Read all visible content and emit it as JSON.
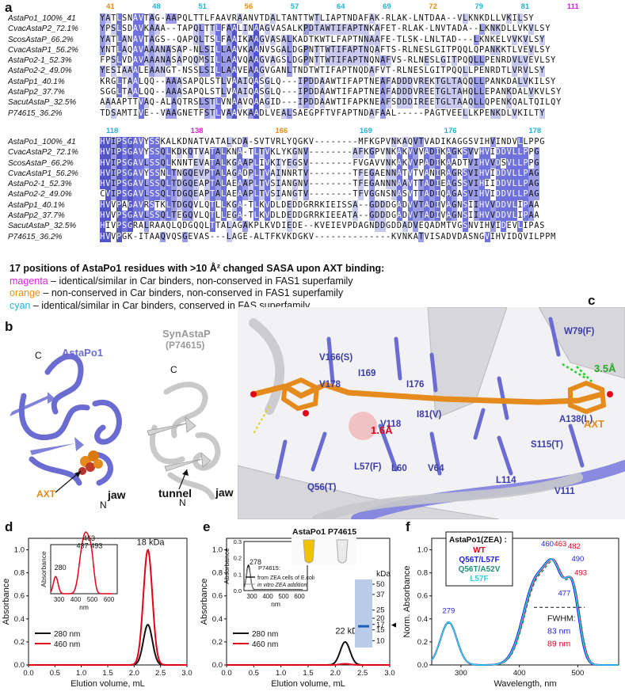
{
  "panels": {
    "a": "a",
    "b": "b",
    "c": "c",
    "d": "d",
    "e": "e",
    "f": "f"
  },
  "alignment": {
    "block1": {
      "positions": [
        {
          "n": "41",
          "c": "orange"
        },
        {
          "n": "48",
          "c": "cyan"
        },
        {
          "n": "51",
          "c": "cyan"
        },
        {
          "n": "56",
          "c": "orange"
        },
        {
          "n": "57",
          "c": "cyan"
        },
        {
          "n": "64",
          "c": "cyan"
        },
        {
          "n": "69",
          "c": "cyan"
        },
        {
          "n": "72",
          "c": "orange"
        },
        {
          "n": "79",
          "c": "cyan"
        },
        {
          "n": "81",
          "c": "cyan"
        },
        {
          "n": "111",
          "c": "magenta"
        }
      ],
      "rows": [
        {
          "name": "AstaPo1_100%_41",
          "seq": "YATLSNAVTAG-AAPQLTTLFAAVRAANVTDALTANTTWTLIAPTNDAFAK-RLAK-LNTDAA--VLKNKDLLVKILSY"
        },
        {
          "name": "CvacAstaP2_72.1%",
          "seq": "YPSLSDAVKAAA--TAPQLTTLFAALINAAGVASALKPDTAWTIFAPTNKAFET-RLAK-LNVTADA--LKNKDLLVKVLSY"
        },
        {
          "name": "ScosAstaP_66.2%",
          "seq": "YATLANAVTAGS--QAPQLTSLFAAIKAAGVASALKADTKWTLFAPTNNAAFE-TLSK-LNLTAD---LKNKELVVKVLSY"
        },
        {
          "name": "CvacAstaP1_56.2%",
          "seq": "YNTLAQAVAAANASAP-NLSILLAAVKAANVSGALDGPNTTWTIFAPTNQAFTS-RLNESLGITPQQLQPANKKTLVEVLSY"
        },
        {
          "name": "AstaPo2-1_52.3%",
          "seq": "FPSLVDAVAAANASAPQQMSILLAAVQAAGVAGSLDGPNTTWTIFAPTNQNAFVS-RLNESLGITPQQLLPENRDVLVEVLSY"
        },
        {
          "name": "AstaPo2-2_49.0%",
          "seq": "YESIAAALEAANGT-NSSLSILLAAVEAAGVGANLTNDTWTIFAPTNQDAFVT-RLNESLGITPQQLLPENRDTLVRVLSY"
        },
        {
          "name": "AstaPp1_40.1%",
          "seq": "KRGLTAALQQ--AAASAPQLSTLVAAIQASGLQ---IPDDAAWTIFAPTNEAFADDDVREKTGLTAQQLLPANKDALVKILSY"
        },
        {
          "name": "AstaPp2_37.7%",
          "seq": "SGGLTAALQQ--AAASAPQLSTLVAAIQASGLQ---IPDDAAWTIFAPTNEAFADDDVREETGLTAHQLLEPANKDALVKVLSY"
        },
        {
          "name": "SacutAstaP_32.5%",
          "seq": "AAAAPTTVAQ-ALAQTRSLSTLVNAAVQAAGID---IPDDAAWTIFAPKNEAFSDDDIREETGLTAAQLLQPENKQALTQILQY"
        },
        {
          "name": "P74615_36.2%",
          "seq": "TDSAMTIVE--VAAGNETFSTLVAAVKAADLVEALSAEGPFTVFAPTNDAFAAL-----PAGTVEELLKPENKDLVKILTY"
        }
      ]
    },
    "block2": {
      "positions": [
        {
          "n": "118",
          "c": "cyan"
        },
        {
          "n": "138",
          "c": "magenta"
        },
        {
          "n": "166",
          "c": "orange"
        },
        {
          "n": "169",
          "c": "cyan"
        },
        {
          "n": "176",
          "c": "cyan"
        },
        {
          "n": "178",
          "c": "cyan"
        }
      ],
      "rows": [
        {
          "name": "AstaPo1_100%_41",
          "seq": "HVIPSGAVYSSKALKDNATVATALKDA-SVTVRLYQGKV--------MFKGPVNKAQVTVADIKAGGSVIHVINDVLLPPG"
        },
        {
          "name": "CvacAstaP2_72.1%",
          "seq": "HVIPSGAVYSSQLKDKQTVATALKNA-TLTVKLYKGNV--------AFKGPVNKAKVVVADIKAGKSVVHVIDDVLLPPG"
        },
        {
          "name": "ScosAstaP_66.2%",
          "seq": "HVIPSGAVLSSQLKNNTEVATALKGAAPLIVKIYEGSV--------FVGAVVNKAKVVPADIKAADTVIHVVDSVLLPPG"
        },
        {
          "name": "CvacAstaP1_56.2%",
          "seq": "HVIPSGAVYSSNLTNGQEVPTALAGADPLTVAINNRTV--------TFEGAENNATVTVANIRAGRSVIHVIDDVLLPAG"
        },
        {
          "name": "AstaPo2-1_52.3%",
          "seq": "HVIPSGAVLSSQLTDGQEAPTALAEAAPLTVSIANGNV--------TFEGANNNAAVTTADIEAGSSVIHIIDDVLLPAG"
        },
        {
          "name": "AstaPo2-2_49.0%",
          "seq": "CVIPSGAVLSSQLTDGQEAPTALAEAAPLTVSIANGTV--------TFVGGNSNASVTTADIQAGASVIHVIDDVLLPAG"
        },
        {
          "name": "AstaPp1_40.1%",
          "seq": "HVVPAGAVRSTKLTDGQVLQTLLKGA-TLKVDLDEDDGRRKIEISSA--GDDDGADVVTADIVAGNSIIHVVDDVLIPAA"
        },
        {
          "name": "AstaPp2_37.7%",
          "seq": "HVVPSGAVLSSQLTEGQVLQTLLEGA-TLKVDLDEDDGRRKIEEATA--GDDDGADVVTADIVAGNSIIHVVDDVLIPAA"
        },
        {
          "name": "SacutAstaP_32.5%",
          "seq": "HIVPSGRALRAAQLQDGQQLTTALAGAKPLKVDIEDE--KVEIEVPDAGNDDGDDADVEQADMTVGSNVIHVIDEVLIPAS"
        },
        {
          "name": "P74615_36.2%",
          "seq": "HVVPGK-ITAAQVQSGEVAS---LAGE-ALTFKVKDGKV--------------KVNKATVISADVDASNGVIHVIDQVILPPM"
        }
      ]
    }
  },
  "legend": {
    "title": "17 positions of AstaPo1 residues with >10 Å² changed SASA upon AXT binding:",
    "items": [
      {
        "key": "magenta",
        "text": " – identical/similar in Car binders, non-conserved in FAS1 superfamily"
      },
      {
        "key": "orange",
        "text": " – non-conserved in Car binders, non-conserved in FAS1 superfamily"
      },
      {
        "key": "cyan",
        "text": " – identical/similar in Car binders, conserved in FAS superfamily"
      }
    ]
  },
  "panel_b": {
    "left_title": "AstaPo1",
    "right_title": "SynAstaP",
    "right_subtitle": "(P74615)",
    "c_label": "C",
    "n_label": "N",
    "axt": "AXT",
    "jaw": "jaw",
    "tunnel": "tunnel"
  },
  "panel_c": {
    "residues": [
      "W79(F)",
      "V166(S)",
      "I169",
      "V178",
      "I176",
      "I81(V)",
      "V118",
      "A138(L)",
      "S115(T)",
      "Q56(T)",
      "L57(F)",
      "L60",
      "V64",
      "L114",
      "V111"
    ],
    "dist1": "3.5Å",
    "dist2": "1.6Å",
    "axt": "AXT"
  },
  "colors": {
    "red": "#e5001a",
    "black": "#111111",
    "blue": "#1e1ee6",
    "teal": "#1f8f7a",
    "cyan": "#33ccee",
    "protein1": "#6a6cd2",
    "axt": "#e58a1c"
  },
  "panel_d": {
    "chart_data": {
      "type": "line",
      "xlabel": "Elution volume, mL",
      "ylabel": "Absorbance",
      "xlim": [
        0,
        3.0
      ],
      "ylim": [
        0,
        1.1
      ],
      "xticks": [
        "0.0",
        "0.5",
        "1.0",
        "1.5",
        "2.0",
        "2.5",
        "3.0"
      ],
      "yticks": [
        "0.0",
        "0.2",
        "0.4",
        "0.6",
        "0.8",
        "1.0"
      ],
      "series": [
        {
          "name": "280 nm",
          "color": "#111111",
          "peak_x": 2.26,
          "peak_y": 0.35
        },
        {
          "name": "460 nm",
          "color": "#e5001a",
          "peak_x": 2.26,
          "peak_y": 1.0
        }
      ],
      "annotation": "18 kDa",
      "inset": {
        "xlabel": "nm",
        "ylabel": "Absorbance",
        "xticks": [
          "300",
          "400",
          "500",
          "600"
        ],
        "peaks": [
          "280",
          "437",
          "463",
          "493"
        ]
      }
    }
  },
  "panel_e": {
    "chart_data": {
      "type": "line",
      "xlabel": "Elution volume, mL",
      "ylabel": "Absorbance",
      "xlim": [
        0,
        3.0
      ],
      "ylim": [
        0,
        1.1
      ],
      "xticks": [
        "0.0",
        "0.5",
        "1.0",
        "1.5",
        "2.0",
        "2.5",
        "3.0"
      ],
      "yticks": [
        "0.0",
        "0.2",
        "0.4",
        "0.6",
        "0.8",
        "1.0"
      ],
      "series": [
        {
          "name": "280 nm",
          "color": "#111111",
          "peak_x": 2.18,
          "peak_y": 0.2
        },
        {
          "name": "460 nm",
          "color": "#e5001a",
          "peak_x": 2.18,
          "peak_y": 0.01
        }
      ],
      "annotation": "22 kDa",
      "inset": {
        "xlabel": "nm",
        "ylabel": "Absorbance",
        "xticks": [
          "300",
          "400",
          "500",
          "600"
        ],
        "yticks": [
          "0.0",
          "0.1",
          "0.2",
          "0.3"
        ],
        "peak": "278",
        "legend_title": "P74615:",
        "legend_items": [
          "from ZEA cells of E.coli",
          "in vitro ZEA addition"
        ]
      },
      "tube_labels": [
        "AstaPo1",
        "P74615"
      ],
      "gel": {
        "unit": "kDa",
        "markers": [
          "50",
          "37",
          "25",
          "20",
          "17",
          "15",
          "10"
        ]
      }
    }
  },
  "panel_f": {
    "chart_data": {
      "type": "line",
      "xlabel": "Wavelength, nm",
      "ylabel": "Norm. Absorbance",
      "xlim": [
        250,
        570
      ],
      "ylim": [
        0,
        1.1
      ],
      "xticks": [
        "300",
        "400",
        "500"
      ],
      "yticks": [
        "0.0",
        "0.2",
        "0.4",
        "0.6",
        "0.8",
        "1.0"
      ],
      "legend_title": "AstaPo1(ZEA) :",
      "series": [
        {
          "name": "WT",
          "color": "#e5001a"
        },
        {
          "name": "Q56T/L57F",
          "color": "#1e1ee6"
        },
        {
          "name": "Q56T/A52V",
          "color": "#1f8f7a"
        },
        {
          "name": "L57F",
          "color": "#33ccee"
        }
      ],
      "labels": {
        "p279": "279",
        "p460": "460",
        "p463": "463",
        "p482": "482",
        "p490": "490",
        "p493": "493",
        "p477": "477"
      },
      "fwhm": {
        "title": "FWHM:",
        "v1": "83 nm",
        "v2": "89 nm"
      }
    }
  }
}
